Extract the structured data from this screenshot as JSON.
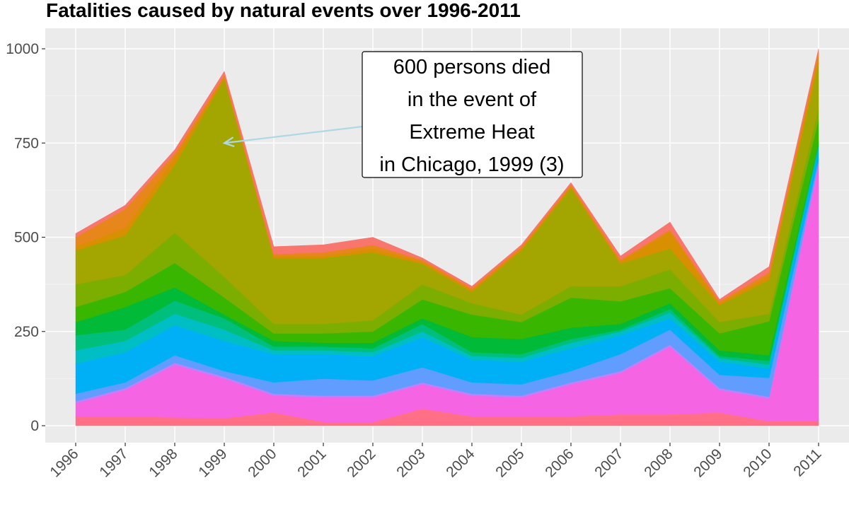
{
  "chart_data": {
    "type": "area",
    "stacked": true,
    "title": "Fatalities caused by natural events over 1996-2011",
    "xlabel": "",
    "ylabel": "",
    "x": [
      "1996",
      "1997",
      "1998",
      "1999",
      "2000",
      "2001",
      "2002",
      "2003",
      "2004",
      "2005",
      "2006",
      "2007",
      "2008",
      "2009",
      "2010",
      "2011"
    ],
    "ylim": [
      -50,
      1050
    ],
    "yticks": [
      0,
      250,
      500,
      750,
      1000
    ],
    "grid": true,
    "legend": "none",
    "background": "#ebebeb",
    "series": [
      {
        "color": "#ff6f86",
        "values": [
          25,
          25,
          22,
          20,
          35,
          10,
          10,
          45,
          25,
          25,
          25,
          30,
          30,
          35,
          12,
          12
        ]
      },
      {
        "color": "#f564e3",
        "values": [
          35,
          70,
          140,
          105,
          45,
          65,
          65,
          65,
          55,
          50,
          85,
          110,
          180,
          60,
          60,
          680
        ]
      },
      {
        "color": "#b983ff",
        "values": [
          5,
          5,
          5,
          5,
          5,
          5,
          5,
          5,
          5,
          5,
          5,
          5,
          5,
          5,
          5,
          5
        ]
      },
      {
        "color": "#619cff",
        "values": [
          20,
          15,
          20,
          15,
          30,
          45,
          40,
          40,
          30,
          30,
          30,
          45,
          40,
          35,
          50,
          10
        ]
      },
      {
        "color": "#00b0f6",
        "values": [
          80,
          80,
          80,
          80,
          75,
          65,
          65,
          80,
          60,
          60,
          60,
          50,
          30,
          35,
          25,
          30
        ]
      },
      {
        "color": "#00bfc4",
        "values": [
          35,
          30,
          30,
          30,
          10,
          10,
          10,
          15,
          10,
          10,
          15,
          10,
          15,
          10,
          10,
          5
        ]
      },
      {
        "color": "#00bf7d",
        "values": [
          40,
          30,
          35,
          30,
          10,
          10,
          10,
          20,
          10,
          10,
          10,
          5,
          10,
          5,
          10,
          5
        ]
      },
      {
        "color": "#00ba38",
        "values": [
          35,
          60,
          35,
          10,
          15,
          10,
          15,
          15,
          40,
          40,
          30,
          15,
          15,
          15,
          15,
          5
        ]
      },
      {
        "color": "#39b600",
        "values": [
          40,
          40,
          65,
          45,
          20,
          25,
          30,
          50,
          60,
          45,
          80,
          60,
          40,
          45,
          90,
          60
        ]
      },
      {
        "color": "#7cae00",
        "values": [
          60,
          45,
          80,
          55,
          25,
          25,
          30,
          40,
          30,
          20,
          30,
          40,
          50,
          30,
          20,
          30
        ]
      },
      {
        "color": "#a3a500",
        "values": [
          90,
          105,
          180,
          525,
          175,
          175,
          180,
          55,
          30,
          170,
          260,
          60,
          55,
          45,
          90,
          120
        ]
      },
      {
        "color": "#d89000",
        "values": [
          10,
          20,
          20,
          5,
          5,
          5,
          10,
          5,
          5,
          5,
          5,
          5,
          45,
          5,
          10,
          20
        ]
      },
      {
        "color": "#e7861a",
        "values": [
          25,
          50,
          10,
          5,
          5,
          10,
          10,
          5,
          5,
          5,
          5,
          5,
          5,
          5,
          10,
          10
        ]
      },
      {
        "color": "#f8766d",
        "values": [
          10,
          10,
          10,
          10,
          20,
          20,
          20,
          5,
          5,
          5,
          5,
          10,
          20,
          5,
          15,
          8
        ]
      }
    ],
    "annotation": {
      "lines": [
        "600 persons died",
        "in the event of",
        "Extreme Heat",
        "in Chicago, 1999 (3)"
      ],
      "arrow_target": {
        "x": "1999",
        "y": 750
      },
      "arrow_color": "#add8e6"
    }
  }
}
